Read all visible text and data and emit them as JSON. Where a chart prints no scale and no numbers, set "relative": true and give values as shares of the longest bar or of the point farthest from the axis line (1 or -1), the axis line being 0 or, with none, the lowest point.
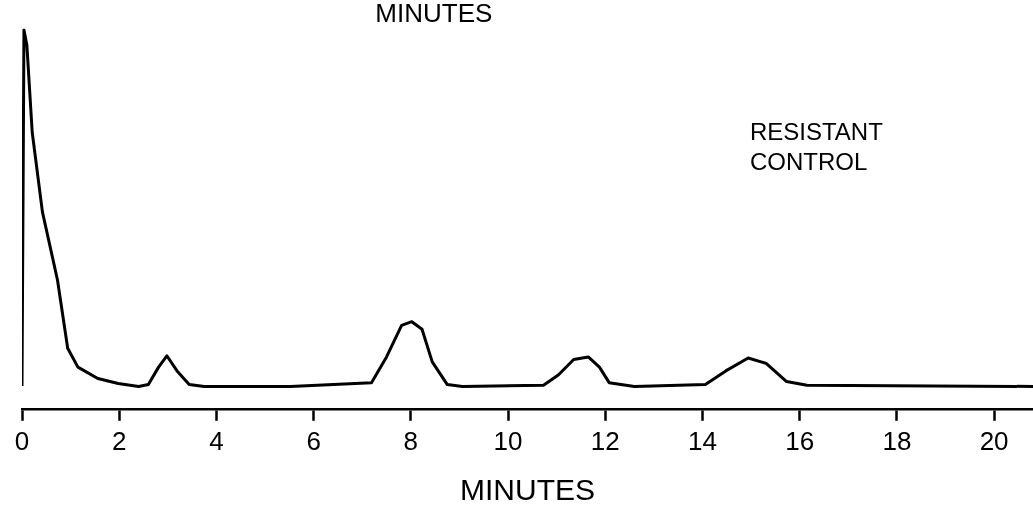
{
  "chart_data": {
    "type": "line",
    "relative": true,
    "xlabel": "MINUTES",
    "annotations": [
      "MINUTES",
      "RESISTANT\nCONTROL"
    ],
    "xlim": [
      0,
      20.8
    ],
    "xticks": [
      0,
      2,
      4,
      6,
      8,
      10,
      12,
      14,
      16,
      18,
      20
    ],
    "grid": false,
    "legend": false,
    "marker": "none",
    "line_style": "solid",
    "series": [
      {
        "color": "#000000",
        "x": [
          0,
          0.04,
          0.1,
          0.21,
          0.42,
          0.73,
          0.94,
          1.15,
          1.56,
          1.98,
          2.4,
          2.6,
          2.81,
          2.98,
          3.19,
          3.44,
          3.75,
          5.52,
          7.19,
          7.5,
          7.81,
          8.02,
          8.23,
          8.44,
          8.75,
          9.06,
          10.73,
          11.04,
          11.35,
          11.65,
          11.88,
          12.08,
          12.6,
          14.06,
          14.48,
          14.94,
          15.31,
          15.73,
          16.15,
          20.8
        ],
        "values": [
          0.06,
          1,
          0.96,
          0.73,
          0.52,
          0.34,
          0.16,
          0.11,
          0.08,
          0.067,
          0.059,
          0.064,
          0.11,
          0.14,
          0.1,
          0.064,
          0.059,
          0.059,
          0.069,
          0.137,
          0.22,
          0.23,
          0.21,
          0.124,
          0.064,
          0.059,
          0.062,
          0.09,
          0.13,
          0.137,
          0.11,
          0.069,
          0.059,
          0.064,
          0.1,
          0.134,
          0.12,
          0.072,
          0.062,
          0.059
        ]
      }
    ]
  }
}
